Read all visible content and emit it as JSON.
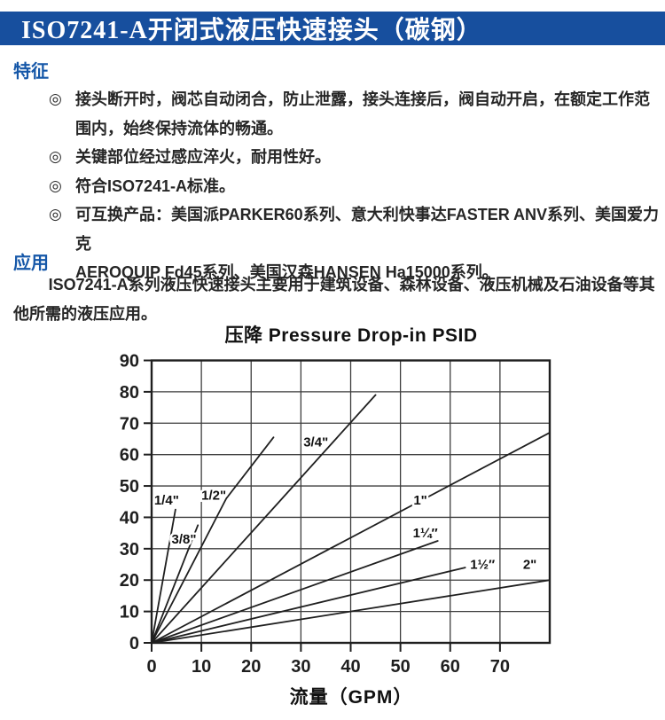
{
  "page": {
    "title": "ISO7241-A开闭式液压快速接头（碳钢）"
  },
  "colors": {
    "header_bar": "#174f9e",
    "heading_blue": "#1557a8",
    "body_text": "#262626",
    "chart_ink": "#1f1f1f"
  },
  "sections": {
    "features": {
      "heading": "特征",
      "bullet_symbol": "◎",
      "items": [
        "接头断开时，阀芯自动闭合，防止泄露，接头连接后，阀自动开启，在额定工作范\n围内，始终保持流体的畅通。",
        "关键部位经过感应淬火，耐用性好。",
        "符合ISO7241-A标准。",
        "可互换产品：美国派PARKER60系列、意大利快事达FASTER ANV系列、美国爱力克\nAEROQUIP Fd45系列、美国汉森HANSEN Ha15000系列。"
      ]
    },
    "application": {
      "heading": "应用",
      "paragraph": "ISO7241-A系列液压快速接头主要用于建筑设备、森林设备、液压机械及石油设备等其\n他所需的液压应用。"
    }
  },
  "chart_data": {
    "type": "line",
    "title": "压降 Pressure Drop-in PSID",
    "xlabel": "流量（GPM）",
    "ylabel": "",
    "x_unit": "GPM",
    "y_unit": "PSID",
    "xlim": [
      0,
      80
    ],
    "ylim": [
      0,
      90
    ],
    "x_ticks": [
      0,
      10,
      20,
      30,
      40,
      50,
      60,
      70
    ],
    "y_ticks": [
      0,
      10,
      20,
      30,
      40,
      50,
      60,
      70,
      80,
      90
    ],
    "grid": true,
    "legend_position": "inline-labels",
    "series": [
      {
        "name": "1/4\"",
        "points": [
          [
            0,
            0
          ],
          [
            4.8,
            42.5
          ]
        ],
        "label_pos": [
          3,
          45.5
        ]
      },
      {
        "name": "3/8\"",
        "points": [
          [
            0,
            0
          ],
          [
            9.3,
            37.5
          ]
        ],
        "label_pos": [
          6.5,
          33
        ]
      },
      {
        "name": "1/2\"",
        "points": [
          [
            0,
            0
          ],
          [
            15,
            46
          ],
          [
            24.5,
            65.5
          ]
        ],
        "label_pos": [
          12.5,
          47
        ]
      },
      {
        "name": "3/4\"",
        "points": [
          [
            0,
            0
          ],
          [
            26,
            45.6
          ],
          [
            45,
            79
          ]
        ],
        "label_pos": [
          33,
          64
        ]
      },
      {
        "name": "1\"",
        "points": [
          [
            0,
            0
          ],
          [
            80,
            67
          ]
        ],
        "label_pos": [
          54,
          45.5
        ]
      },
      {
        "name": "1¼″",
        "points": [
          [
            0,
            0
          ],
          [
            57.5,
            32.5
          ]
        ],
        "label_pos": [
          55,
          35
        ]
      },
      {
        "name": "1½″",
        "points": [
          [
            0,
            0
          ],
          [
            63,
            24
          ]
        ],
        "label_pos": [
          66.5,
          25
        ]
      },
      {
        "name": "2\"",
        "points": [
          [
            0,
            0
          ],
          [
            80,
            20
          ]
        ],
        "label_pos": [
          76,
          25
        ]
      }
    ]
  }
}
